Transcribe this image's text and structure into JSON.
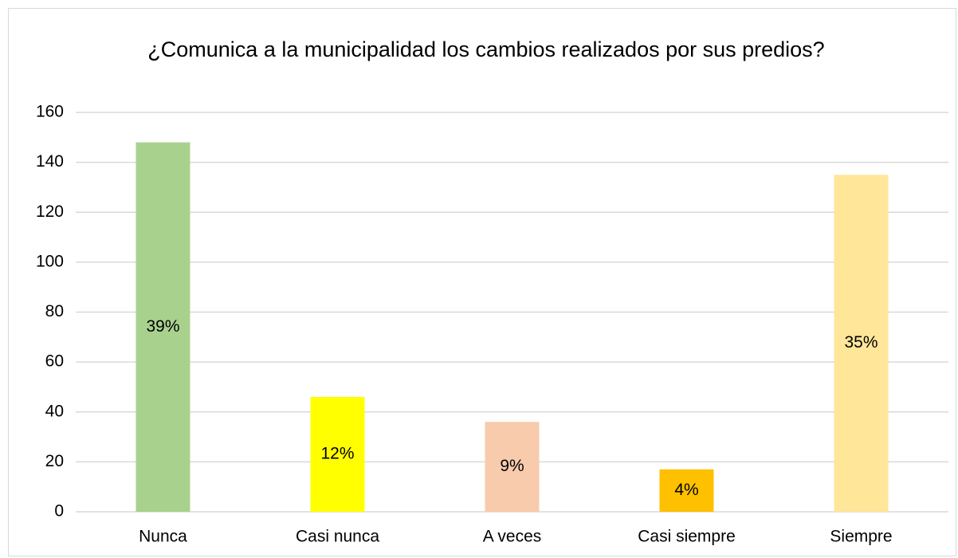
{
  "chart_data": {
    "type": "bar",
    "title": "¿Comunica a la municipalidad los cambios realizados por sus predios?",
    "categories": [
      "Nunca",
      "Casi nunca",
      "A veces",
      "Casi siempre",
      "Siempre"
    ],
    "values": [
      148,
      46,
      36,
      17,
      135
    ],
    "value_labels": [
      "39%",
      "12%",
      "9%",
      "4%",
      "35%"
    ],
    "colors": [
      "#a9d18e",
      "#ffff00",
      "#f8cbad",
      "#ffc000",
      "#ffe699"
    ],
    "ylim": [
      0,
      160
    ],
    "yticks": [
      0,
      20,
      40,
      60,
      80,
      100,
      120,
      140,
      160
    ],
    "grid": true
  }
}
